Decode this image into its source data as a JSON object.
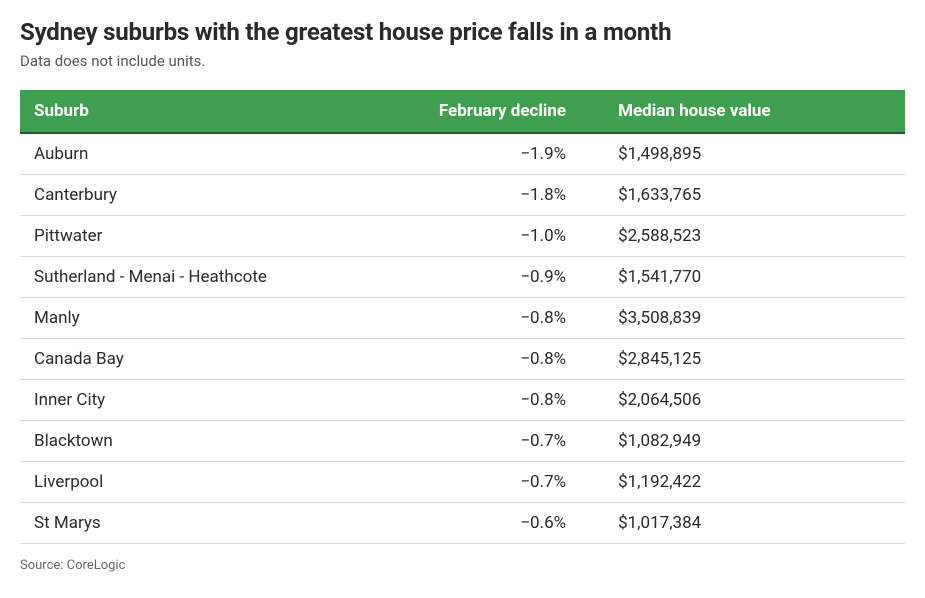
{
  "title": "Sydney suburbs with the greatest house price falls in a month",
  "subtitle": "Data does not include units.",
  "source": "Source: CoreLogic",
  "table": {
    "header_bg": "#3f9e4f",
    "header_border": "#1f5a2d",
    "row_border": "#d9d9d9",
    "text_color": "#2a2a2a",
    "header_text_color": "#ffffff",
    "columns": [
      {
        "key": "suburb",
        "label": "Suburb",
        "align": "left"
      },
      {
        "key": "decline",
        "label": "February decline",
        "align": "right"
      },
      {
        "key": "median",
        "label": "Median house value",
        "align": "left"
      }
    ],
    "rows": [
      {
        "suburb": "Auburn",
        "decline": "−1.9%",
        "median": "$1,498,895"
      },
      {
        "suburb": "Canterbury",
        "decline": "−1.8%",
        "median": "$1,633,765"
      },
      {
        "suburb": "Pittwater",
        "decline": "−1.0%",
        "median": "$2,588,523"
      },
      {
        "suburb": "Sutherland - Menai - Heathcote",
        "decline": "−0.9%",
        "median": "$1,541,770"
      },
      {
        "suburb": "Manly",
        "decline": "−0.8%",
        "median": "$3,508,839"
      },
      {
        "suburb": "Canada Bay",
        "decline": "−0.8%",
        "median": "$2,845,125"
      },
      {
        "suburb": "Inner City",
        "decline": "−0.8%",
        "median": "$2,064,506"
      },
      {
        "suburb": "Blacktown",
        "decline": "−0.7%",
        "median": "$1,082,949"
      },
      {
        "suburb": "Liverpool",
        "decline": "−0.7%",
        "median": "$1,192,422"
      },
      {
        "suburb": "St Marys",
        "decline": "−0.6%",
        "median": "$1,017,384"
      }
    ]
  }
}
